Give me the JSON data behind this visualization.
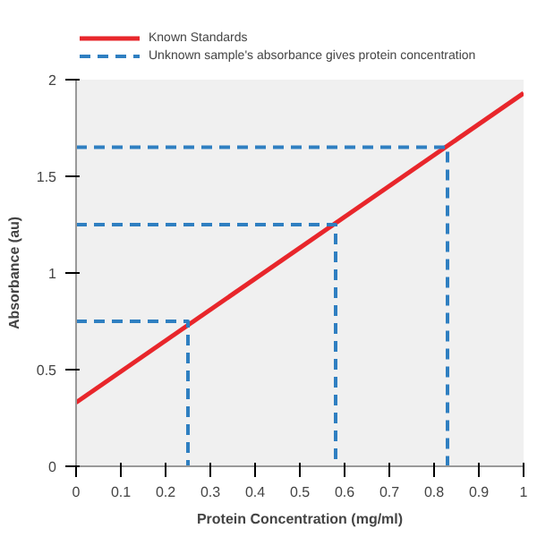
{
  "chart_data": {
    "type": "line",
    "xlabel": "Protein Concentration (mg/ml)",
    "ylabel": "Absorbance (au)",
    "series": [
      {
        "name": "Known Standards",
        "color": "#e8262b",
        "x": [
          0,
          1
        ],
        "values": [
          0.33,
          1.93
        ],
        "line_style": "solid"
      },
      {
        "name": "Unknown sample's absorbance gives protein concentration",
        "color": "#2f7fc1",
        "x": [
          0,
          0.25,
          0.25
        ],
        "values": [
          0.75,
          0.75,
          0
        ],
        "line_style": "dashed"
      },
      {
        "color": "#2f7fc1",
        "x": [
          0,
          0.58,
          0.58
        ],
        "values": [
          1.25,
          1.25,
          0
        ],
        "line_style": "dashed"
      },
      {
        "color": "#2f7fc1",
        "x": [
          0,
          0.83,
          0.83
        ],
        "values": [
          1.65,
          1.65,
          0
        ],
        "line_style": "dashed"
      }
    ],
    "xlim": [
      0,
      1
    ],
    "ylim": [
      0,
      2
    ],
    "xticks": [
      0,
      0.1,
      0.2,
      0.3,
      0.4,
      0.5,
      0.6,
      0.7,
      0.8,
      0.9,
      1
    ],
    "yticks": [
      0,
      0.5,
      1,
      1.5,
      2
    ],
    "grid": false,
    "legend": "top left",
    "marker": "none"
  }
}
